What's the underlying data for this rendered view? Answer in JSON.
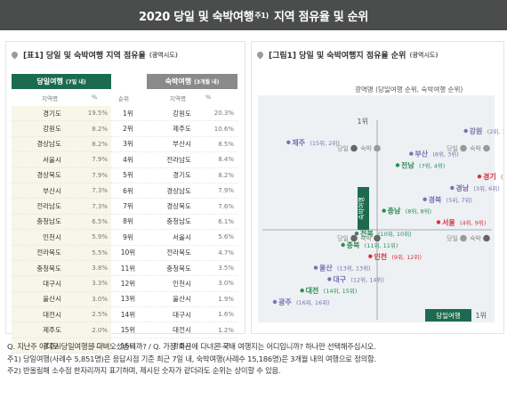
{
  "header": {
    "title": "2020 당일 및 숙박여행",
    "title_sup": "주1)",
    "title_suffix": "지역 점유율 및 순위"
  },
  "table_panel": {
    "title": "[표1] 당일 및 숙박여행 지역 점유율",
    "title_note": "(광역시도)",
    "day": {
      "label": "당일여행",
      "label_sub": "(7일 내)",
      "col_region": "지역명",
      "col_pct": "%",
      "col_rank": "순위",
      "rows": [
        {
          "name": "경기도",
          "pct": "19.5%"
        },
        {
          "name": "강원도",
          "pct": "8.2%"
        },
        {
          "name": "경상남도",
          "pct": "8.2%"
        },
        {
          "name": "서울시",
          "pct": "7.9%"
        },
        {
          "name": "경상북도",
          "pct": "7.9%"
        },
        {
          "name": "부산시",
          "pct": "7.3%"
        },
        {
          "name": "전라남도",
          "pct": "7.3%"
        },
        {
          "name": "충청남도",
          "pct": "6.5%"
        },
        {
          "name": "인천시",
          "pct": "5.9%"
        },
        {
          "name": "전라북도",
          "pct": "5.5%"
        },
        {
          "name": "충청북도",
          "pct": "3.8%"
        },
        {
          "name": "대구시",
          "pct": "3.3%"
        },
        {
          "name": "울산시",
          "pct": "3.0%"
        },
        {
          "name": "대전시",
          "pct": "2.5%"
        },
        {
          "name": "제주도",
          "pct": "2.0%"
        },
        {
          "name": "광주시",
          "pct": "1.1%"
        }
      ]
    },
    "ranks": [
      "1위",
      "2위",
      "3위",
      "4위",
      "5위",
      "6위",
      "7위",
      "8위",
      "9위",
      "10위",
      "11위",
      "12위",
      "13위",
      "14위",
      "15위",
      "16위"
    ],
    "stay": {
      "label": "숙박여행",
      "label_sub": "(3개월 내)",
      "col_region": "지역명",
      "col_pct": "%",
      "rows": [
        {
          "name": "강원도",
          "pct": "20.3%"
        },
        {
          "name": "제주도",
          "pct": "10.6%"
        },
        {
          "name": "부산시",
          "pct": "8.5%"
        },
        {
          "name": "전라남도",
          "pct": "8.4%"
        },
        {
          "name": "경기도",
          "pct": "8.2%"
        },
        {
          "name": "경상남도",
          "pct": "7.9%"
        },
        {
          "name": "경상북도",
          "pct": "7.6%"
        },
        {
          "name": "충청남도",
          "pct": "6.1%"
        },
        {
          "name": "서울시",
          "pct": "5.6%"
        },
        {
          "name": "전라북도",
          "pct": "4.7%"
        },
        {
          "name": "충청북도",
          "pct": "3.5%"
        },
        {
          "name": "인천시",
          "pct": "3.0%"
        },
        {
          "name": "울산시",
          "pct": "1.9%"
        },
        {
          "name": "대구시",
          "pct": "1.6%"
        },
        {
          "name": "대전시",
          "pct": "1.2%"
        },
        {
          "name": "광주시",
          "pct": "1.0%"
        }
      ]
    }
  },
  "chart_panel": {
    "title": "[그림1] 당일 및 숙박여행지 점유율 순위",
    "title_note": "(광역시도)",
    "chart_data": {
      "type": "scatter",
      "subtitle": "광역명 (당일여행 순위, 숙박여행 순위)",
      "xlabel": "당일여행",
      "ylabel": "숙박여행",
      "x_end_label": "1위",
      "y_end_label": "1위",
      "quadrant_labels": {
        "day": "당일",
        "stay": "숙박"
      },
      "xlim": [
        16,
        1
      ],
      "ylim": [
        16,
        1
      ],
      "points": [
        {
          "name": "강원",
          "rank": "(2위, 1위)",
          "day": 2,
          "stay": 1,
          "color": "#7b6fb4"
        },
        {
          "name": "제주",
          "rank": "(15위, 2위)",
          "day": 15,
          "stay": 2,
          "color": "#7b6fb4"
        },
        {
          "name": "부산",
          "rank": "(6위, 3위)",
          "day": 6,
          "stay": 3,
          "color": "#7b6fb4"
        },
        {
          "name": "전남",
          "rank": "(7위, 4위)",
          "day": 7,
          "stay": 4,
          "color": "#2e8b57"
        },
        {
          "name": "경기",
          "rank": "(1위, 5위)",
          "day": 1,
          "stay": 5,
          "color": "#d6303f"
        },
        {
          "name": "경남",
          "rank": "(3위, 6위)",
          "day": 3,
          "stay": 6,
          "color": "#7b6fb4"
        },
        {
          "name": "경북",
          "rank": "(5위, 7위)",
          "day": 5,
          "stay": 7,
          "color": "#7b6fb4"
        },
        {
          "name": "충남",
          "rank": "(8위, 8위)",
          "day": 8,
          "stay": 8,
          "color": "#2e8b57"
        },
        {
          "name": "서울",
          "rank": "(4위, 9위)",
          "day": 4,
          "stay": 9,
          "color": "#d6303f"
        },
        {
          "name": "전북",
          "rank": "(10위, 10위)",
          "day": 10,
          "stay": 10,
          "color": "#2e8b57"
        },
        {
          "name": "충북",
          "rank": "(11위, 11위)",
          "day": 11,
          "stay": 11,
          "color": "#2e8b57"
        },
        {
          "name": "인천",
          "rank": "(9위, 12위)",
          "day": 9,
          "stay": 12,
          "color": "#d6303f"
        },
        {
          "name": "울산",
          "rank": "(13위, 13위)",
          "day": 13,
          "stay": 13,
          "color": "#7b6fb4"
        },
        {
          "name": "대구",
          "rank": "(12위, 14위)",
          "day": 12,
          "stay": 14,
          "color": "#7b6fb4"
        },
        {
          "name": "대전",
          "rank": "(14위, 15위)",
          "day": 14,
          "stay": 15,
          "color": "#2e8b57"
        },
        {
          "name": "광주",
          "rank": "(16위, 16위)",
          "day": 16,
          "stay": 16,
          "color": "#7b6fb4"
        }
      ]
    }
  },
  "footer": {
    "line1": "Q. 지난주 어디로 당일여행을 다녀오셨습니까? / Q. 가장 최근에 다녀온 국내 여행지는 어디입니까? 하나만 선택해주십시오.",
    "line2": "주1) 당일여행(사례수 5,851명)은 응답시점 기준 최근 7일 내, 숙박여행(사례수 15,186명)은 3개월 내의 여행으로 정의함.",
    "line3": "주2) 반올림해 소수점 한자리까지 표기하며, 제시된 숫자가 같더라도 순위는 상이할 수 있음."
  },
  "colors": {
    "header_bg": "#4a4d4c",
    "day_green": "#1c6b4e",
    "stay_gray": "#8a8a8a",
    "purple": "#7b6fb4",
    "green": "#2e8b57",
    "red": "#d6303f"
  }
}
